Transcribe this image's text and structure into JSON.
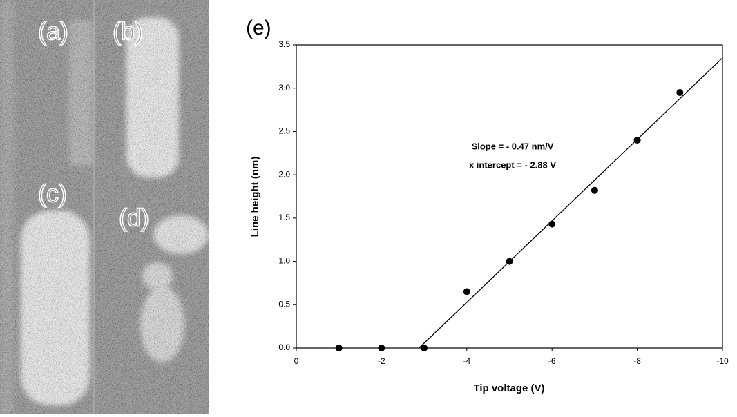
{
  "image_panel": {
    "labels": [
      "(a)",
      "(b)",
      "(c)",
      "(d)"
    ]
  },
  "chart_data": {
    "type": "scatter",
    "panel_label": "(e)",
    "x_label": "Tip voltage (V)",
    "y_label": "Line height (nm)",
    "annotations": [
      "Slope = - 0.47 nm/V",
      "x intercept = - 2.88 V"
    ],
    "x": [
      -1,
      -2,
      -3,
      -4,
      -5,
      -6,
      -7,
      -8,
      -9
    ],
    "values": [
      0,
      0,
      0,
      0.65,
      1.0,
      1.43,
      1.82,
      2.4,
      2.95
    ],
    "color": "#000000",
    "fit_line": {
      "x": [
        -2.88,
        -10
      ],
      "values": [
        0,
        3.35
      ]
    },
    "xlim": [
      0,
      -10
    ],
    "xticks": [
      0,
      -2,
      -4,
      -6,
      -8,
      -10
    ],
    "ylim": [
      0,
      3.5
    ],
    "yticks": [
      {
        "value": 0,
        "label": "0.0"
      },
      {
        "value": 0.5,
        "label": "0.5"
      },
      {
        "value": 1,
        "label": "1.0"
      },
      {
        "value": 1.5,
        "label": "1.5"
      },
      {
        "value": 2,
        "label": "2.0"
      },
      {
        "value": 2.5,
        "label": "2.5"
      },
      {
        "value": 3,
        "label": "3.0"
      },
      {
        "value": 3.5,
        "label": "3.5"
      }
    ]
  }
}
